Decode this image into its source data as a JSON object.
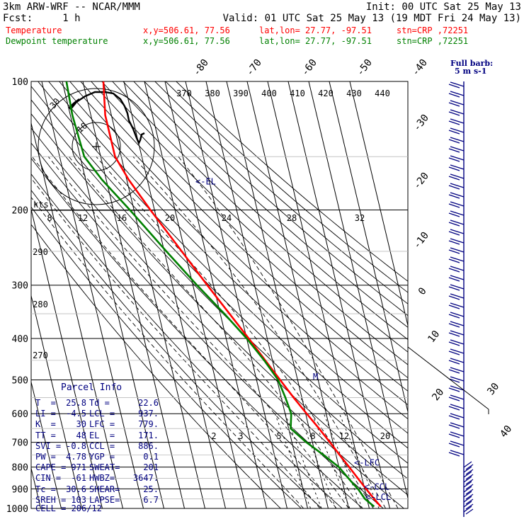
{
  "header": {
    "model": "3km ARW-WRF -- NCAR/MMM",
    "init": "Init: 00 UTC Sat 25 May 13",
    "fcst": "Fcst:     1 h",
    "valid": "Valid: 01 UTC Sat 25 May 13 (19 MDT Fri 24 May 13)",
    "temp_line": {
      "label": "Temperature",
      "xy": "x,y=506.61, 77.56",
      "latlon": "lat,lon= 27.77, -97.51",
      "stn": "stn=CRP ,72251"
    },
    "dew_line": {
      "label": "Dewpoint temperature",
      "xy": "x,y=506.61, 77.56",
      "latlon": "lat,lon= 27.77, -97.51",
      "stn": "stn=CRP ,72251"
    }
  },
  "colors": {
    "temperature": "#ff0000",
    "dewpoint": "#008000",
    "wind": "#000080",
    "parcel": "#000080",
    "header_red": "#ff0000",
    "header_green": "#008000"
  },
  "chart_data": {
    "type": "line",
    "title": "Skew-T log-P sounding",
    "pressure_levels": [
      100,
      200,
      300,
      400,
      500,
      600,
      700,
      800,
      900,
      1000
    ],
    "skewed_isotherm_labels": [
      -80,
      -70,
      -60,
      -50,
      -40,
      -30,
      -20,
      -10,
      0,
      10,
      20,
      30,
      40
    ],
    "theta_e_labels": [
      370,
      380,
      390,
      400,
      410,
      420,
      430,
      440
    ],
    "theta_labels": [
      290,
      280,
      270
    ],
    "mixing_ratio_labels": [
      2,
      3,
      5,
      8,
      12,
      20
    ],
    "series": [
      {
        "name": "Temperature",
        "pressure": [
          990,
          950,
          905,
          860,
          800,
          750,
          700,
          650,
          600,
          550,
          500,
          450,
          400,
          350,
          300,
          250,
          200,
          170,
          150,
          120,
          100
        ],
        "temperature": [
          25.8,
          23.5,
          21.0,
          18.5,
          15.0,
          11.8,
          8.5,
          4.8,
          0.5,
          -4.0,
          -8.5,
          -13.5,
          -19.0,
          -25.5,
          -33.0,
          -41.5,
          -52.0,
          -59.0,
          -63.0,
          -63.0,
          -60.0
        ]
      },
      {
        "name": "Dewpoint temperature",
        "pressure": [
          990,
          950,
          905,
          860,
          800,
          750,
          700,
          650,
          600,
          550,
          500,
          450,
          400,
          350,
          300,
          250,
          200,
          170,
          150,
          120,
          100
        ],
        "dewpoint": [
          22.6,
          19.0,
          17.0,
          14.0,
          10.0,
          4.0,
          -3.0,
          -9.0,
          -7.0,
          -8.0,
          -9.5,
          -14.0,
          -20.0,
          -28.0,
          -38.0,
          -49.0,
          -62.0,
          -72.0,
          -78.0,
          -79.0,
          -78.0
        ]
      }
    ],
    "markers": [
      {
        "label": "<-EL",
        "pressure": 171
      },
      {
        "label": "<-LFC",
        "pressure": 779
      },
      {
        "label": "<-CCL",
        "pressure": 886
      },
      {
        "label": "<-LCL",
        "pressure": 937
      },
      {
        "label": "M",
        "pressure": 490
      }
    ],
    "hodograph": {
      "units": "kts",
      "ring_labels": [
        "10",
        "30"
      ]
    },
    "wind_scale": {
      "title": "Full barb:",
      "value": "5 m s-1"
    }
  },
  "parcel_info": {
    "title": "Parcel Info",
    "rows": [
      {
        "k1": "T  =",
        "v1": "25.8",
        "k2": "Td =",
        "v2": "22.6"
      },
      {
        "k1": "LI =",
        "v1": "-4.5",
        "k2": "LCL =",
        "v2": "937."
      },
      {
        "k1": "K  =",
        "v1": "30",
        "k2": "LFC =",
        "v2": "779."
      },
      {
        "k1": "TT =",
        "v1": "48",
        "k2": "EL  =",
        "v2": "171."
      },
      {
        "k1": "SVI =",
        "v1": "-0.8",
        "k2": "CCL =",
        "v2": "886."
      },
      {
        "k1": "PW =",
        "v1": "4.78",
        "k2": "YGP =",
        "v2": "0.1"
      },
      {
        "k1": "CAPE =",
        "v1": "971",
        "k2": "SWEAT=",
        "v2": "201"
      },
      {
        "k1": "CIN =",
        "v1": "-61",
        "k2": "HWBZ=",
        "v2": "3647."
      },
      {
        "k1": "Tc =",
        "v1": "30.6",
        "k2": "SHEAR=",
        "v2": "25."
      },
      {
        "k1": "SREH =",
        "v1": "103",
        "k2": "LAPSE=",
        "v2": "6.7"
      }
    ],
    "cell": "CELL = 206/12"
  }
}
